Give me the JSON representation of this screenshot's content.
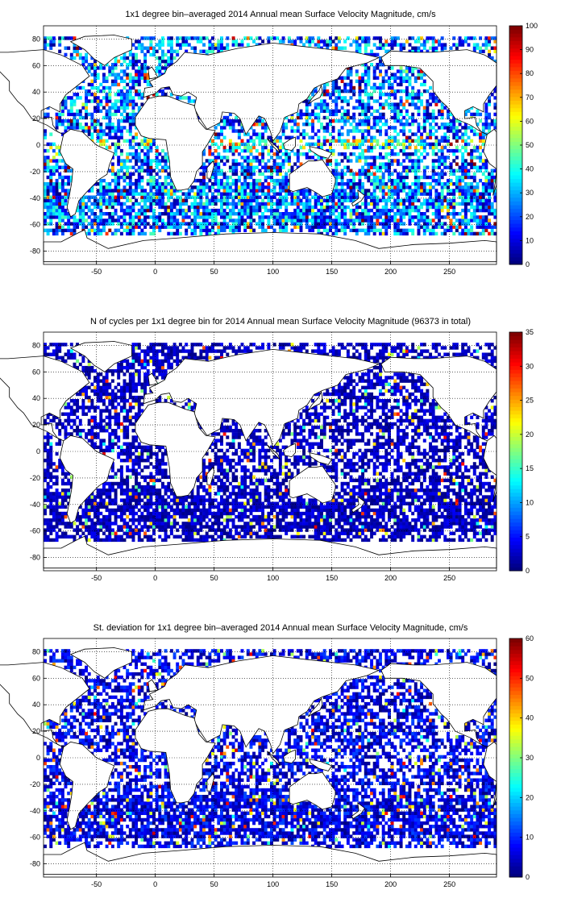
{
  "panels": [
    {
      "title": "1x1 degree bin–averaged 2014 Annual mean Surface Velocity Magnitude, cm/s",
      "xticks": [
        "-50",
        "0",
        "50",
        "100",
        "150",
        "200",
        "250"
      ],
      "yticks": [
        "80",
        "60",
        "40",
        "20",
        "0",
        "-20",
        "-40",
        "-60",
        "-80"
      ],
      "colorbar": {
        "min": 0,
        "max": 100,
        "ticks": [
          "100",
          "90",
          "80",
          "70",
          "60",
          "50",
          "40",
          "30",
          "20",
          "10",
          "0"
        ]
      },
      "intensity": 0.45
    },
    {
      "title": "N of cycles per 1x1 degree bin for 2014 Annual mean Surface Velocity Magnitude (96373 in total)",
      "xticks": [
        "-50",
        "0",
        "50",
        "100",
        "150",
        "200",
        "250"
      ],
      "yticks": [
        "80",
        "60",
        "40",
        "20",
        "0",
        "-20",
        "-40",
        "-60",
        "-80"
      ],
      "colorbar": {
        "min": 0,
        "max": 35,
        "ticks": [
          "35",
          "30",
          "25",
          "20",
          "15",
          "10",
          "5",
          "0"
        ]
      },
      "intensity": 0.12
    },
    {
      "title": "St. deviation for 1x1 degree bin–averaged 2014 Annual mean Surface Velocity Magnitude, cm/s",
      "xticks": [
        "-50",
        "0",
        "50",
        "100",
        "150",
        "200",
        "250"
      ],
      "yticks": [
        "80",
        "60",
        "40",
        "20",
        "0",
        "-20",
        "-40",
        "-60",
        "-80"
      ],
      "colorbar": {
        "min": 0,
        "max": 60,
        "ticks": [
          "60",
          "50",
          "40",
          "30",
          "20",
          "10",
          "0"
        ]
      },
      "intensity": 0.2
    }
  ],
  "colors": {
    "jet_low": "#00008f",
    "jet_high": "#800000"
  }
}
